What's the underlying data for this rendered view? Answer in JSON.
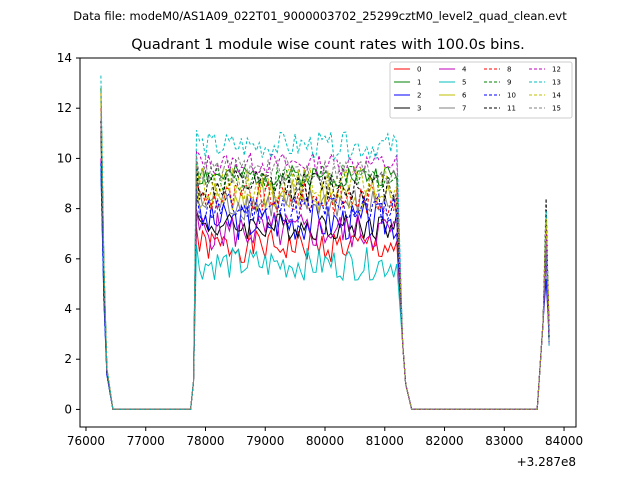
{
  "chart_data": {
    "type": "line",
    "suptitle": "Data file: modeM0/AS1A09_022T01_9000003702_25299cztM0_level2_quad_clean.evt",
    "title": "Quadrant 1 module wise count rates with 100.0s bins.",
    "xlabel": "",
    "ylabel": "",
    "x_offset_label": "+3.287e8",
    "xlim": [
      75900,
      84200
    ],
    "ylim": [
      -0.7,
      14
    ],
    "xticks": [
      76000,
      77000,
      78000,
      79000,
      80000,
      81000,
      82000,
      83000,
      84000
    ],
    "yticks": [
      0,
      2,
      4,
      6,
      8,
      10,
      12,
      14
    ],
    "grid": false,
    "legend_position": "top-right",
    "segments": [
      {
        "x_start": 76250,
        "x_end": 76450
      },
      {
        "x_start": 77850,
        "x_end": 81250
      },
      {
        "x_start": 83650,
        "x_end": 83750
      }
    ],
    "series": [
      {
        "name": "0",
        "color": "#ff0000",
        "dash": "solid",
        "peak": 12.6,
        "base": 6.5,
        "amp": 0.3,
        "seed": 1,
        "end_spike": 6.8
      },
      {
        "name": "1",
        "color": "#008000",
        "dash": "solid",
        "peak": 12.8,
        "base": 9.3,
        "amp": 0.2,
        "seed": 2,
        "end_spike": 7.2
      },
      {
        "name": "2",
        "color": "#0000ff",
        "dash": "solid",
        "peak": 9.5,
        "base": 7.5,
        "amp": 0.35,
        "seed": 3,
        "end_spike": 5.2
      },
      {
        "name": "3",
        "color": "#000000",
        "dash": "solid",
        "peak": 11.0,
        "base": 7.3,
        "amp": 0.25,
        "seed": 4,
        "end_spike": 7.4
      },
      {
        "name": "4",
        "color": "#bf00bf",
        "dash": "solid",
        "peak": 10.0,
        "base": 7.1,
        "amp": 0.35,
        "seed": 5,
        "end_spike": 6.0
      },
      {
        "name": "5",
        "color": "#00bfbf",
        "dash": "solid",
        "peak": 9.8,
        "base": 5.8,
        "amp": 0.3,
        "seed": 6,
        "end_spike": 6.5
      },
      {
        "name": "6",
        "color": "#bfbf00",
        "dash": "solid",
        "peak": 12.2,
        "base": 8.5,
        "amp": 0.3,
        "seed": 7,
        "end_spike": 7.8
      },
      {
        "name": "7",
        "color": "#808080",
        "dash": "solid",
        "peak": 11.5,
        "base": 8.2,
        "amp": 0.3,
        "seed": 8,
        "end_spike": 7.0
      },
      {
        "name": "8",
        "color": "#ff0000",
        "dash": "dashed",
        "peak": 12.0,
        "base": 8.4,
        "amp": 0.3,
        "seed": 9,
        "end_spike": 7.2
      },
      {
        "name": "9",
        "color": "#008000",
        "dash": "dashed",
        "peak": 12.4,
        "base": 9.2,
        "amp": 0.25,
        "seed": 10,
        "end_spike": 7.5
      },
      {
        "name": "10",
        "color": "#0000ff",
        "dash": "dashed",
        "peak": 9.8,
        "base": 8.0,
        "amp": 0.3,
        "seed": 11,
        "end_spike": 6.5
      },
      {
        "name": "11",
        "color": "#000000",
        "dash": "dashed",
        "peak": 11.5,
        "base": 8.9,
        "amp": 0.3,
        "seed": 12,
        "end_spike": 8.4
      },
      {
        "name": "12",
        "color": "#bf00bf",
        "dash": "dashed",
        "peak": 12.0,
        "base": 9.8,
        "amp": 0.2,
        "seed": 13,
        "end_spike": 7.2
      },
      {
        "name": "13",
        "color": "#00bfbf",
        "dash": "dashed",
        "peak": 13.3,
        "base": 10.5,
        "amp": 0.25,
        "seed": 14,
        "end_spike": 7.9
      },
      {
        "name": "14",
        "color": "#bfbf00",
        "dash": "dashed",
        "peak": 12.6,
        "base": 9.0,
        "amp": 0.3,
        "seed": 15,
        "end_spike": 7.6
      },
      {
        "name": "15",
        "color": "#808080",
        "dash": "dashed",
        "peak": 11.8,
        "base": 9.5,
        "amp": 0.25,
        "seed": 16,
        "end_spike": 6.8
      }
    ]
  }
}
